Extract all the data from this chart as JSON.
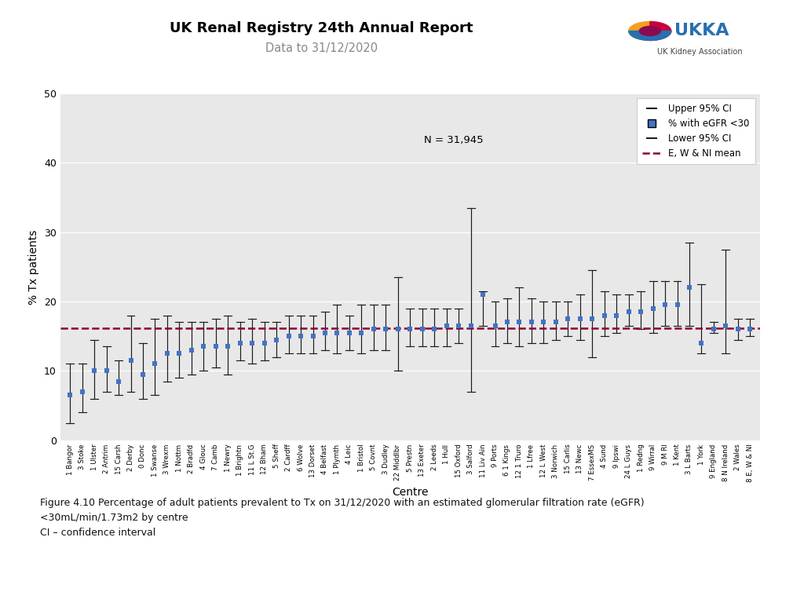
{
  "title": "UK Renal Registry 24th Annual Report",
  "subtitle": "Data to 31/12/2020",
  "xlabel": "Centre",
  "ylabel": "% Tx patients",
  "n_label": "N = 31,945",
  "mean_line": 16.1,
  "ylim": [
    0,
    50
  ],
  "yticks": [
    0,
    10,
    20,
    30,
    40,
    50
  ],
  "figure_caption": "Figure 4.10 Percentage of adult patients prevalent to Tx on 31/12/2020 with an estimated glomerular filtration rate (eGFR)\n<30mL/min/1.73m2 by centre\nCI – confidence interval",
  "centres": [
    "1 Bangor",
    "3 Stoke",
    "1 Ulster",
    "2 Antrim",
    "15 Carsh",
    "2 Derby",
    "0 Donc",
    "1 Swanse",
    "3 Wrexm",
    "1 Nottm",
    "2 Bradfd",
    "4 Glouc",
    "7 Camb",
    "1 Newry",
    "1 Brightn",
    "11 L St.G",
    "12 Bham",
    "5 Sheff",
    "2 Cardff",
    "6 Wolve",
    "13 Dorset",
    "4 Belfast",
    "1 Plymth",
    "4 Leic",
    "1 Bristol",
    "5 Covnt",
    "3 Dudley",
    "22 Middlbr",
    "5 Prestn",
    "13 Exeter",
    "2 Leeds",
    "1 Hull",
    "15 Oxford",
    "3 Salford",
    "11 Liv Ain",
    "9 Ports",
    "6 1 Kings",
    "12 1 Truro",
    "1 Lfree",
    "12 L West",
    "3 Norwich",
    "15 Carlis",
    "13 Newc",
    "7 EssexMS",
    "4 Sund",
    "9 Ipswi",
    "24 L Guys",
    "1 Redng",
    "9 Wirral",
    "9 M RI",
    "1 Kent",
    "3 L Barts",
    "1 York",
    "9 England",
    "8 N Ireland",
    "2 Wales",
    "8 E, W & NI"
  ],
  "pct": [
    6.5,
    7.0,
    10.0,
    10.0,
    8.5,
    11.5,
    9.5,
    11.0,
    12.5,
    12.5,
    13.0,
    13.5,
    13.5,
    13.5,
    14.0,
    14.0,
    14.0,
    14.5,
    15.0,
    15.0,
    15.0,
    15.5,
    15.5,
    15.5,
    15.5,
    16.0,
    16.0,
    16.0,
    16.0,
    16.0,
    16.0,
    16.5,
    16.5,
    16.5,
    21.0,
    16.5,
    17.0,
    17.0,
    17.0,
    17.0,
    17.0,
    17.5,
    17.5,
    17.5,
    18.0,
    18.0,
    18.5,
    18.5,
    19.0,
    19.5,
    19.5,
    22.0,
    14.0,
    16.0,
    16.5,
    16.0,
    16.0
  ],
  "upper_ci": [
    11.0,
    11.0,
    14.5,
    13.5,
    11.5,
    18.0,
    14.0,
    17.5,
    18.0,
    17.0,
    17.0,
    17.0,
    17.5,
    18.0,
    17.0,
    17.5,
    17.0,
    17.0,
    18.0,
    18.0,
    18.0,
    18.5,
    19.5,
    18.0,
    19.5,
    19.5,
    19.5,
    23.5,
    19.0,
    19.0,
    19.0,
    19.0,
    19.0,
    33.5,
    21.5,
    20.0,
    20.5,
    22.0,
    20.5,
    20.0,
    20.0,
    20.0,
    21.0,
    24.5,
    21.5,
    21.0,
    21.0,
    21.5,
    23.0,
    23.0,
    23.0,
    28.5,
    22.5,
    17.0,
    27.5,
    17.5,
    17.5
  ],
  "lower_ci": [
    2.5,
    4.0,
    6.0,
    7.0,
    6.5,
    7.0,
    6.0,
    6.5,
    8.5,
    9.0,
    9.5,
    10.0,
    10.5,
    9.5,
    11.5,
    11.0,
    11.5,
    12.0,
    12.5,
    12.5,
    12.5,
    13.0,
    12.5,
    13.0,
    12.5,
    13.0,
    13.0,
    10.0,
    13.5,
    13.5,
    13.5,
    13.5,
    14.0,
    7.0,
    16.5,
    13.5,
    14.0,
    13.5,
    14.0,
    14.0,
    14.5,
    15.0,
    14.5,
    12.0,
    15.0,
    15.5,
    16.5,
    16.0,
    15.5,
    16.5,
    16.5,
    16.5,
    12.5,
    15.5,
    12.5,
    14.5,
    15.0
  ],
  "dot_color": "#4472c4",
  "ci_color": "#1a1a1a",
  "mean_color": "#8B0032",
  "background_color": "#e8e8e8"
}
